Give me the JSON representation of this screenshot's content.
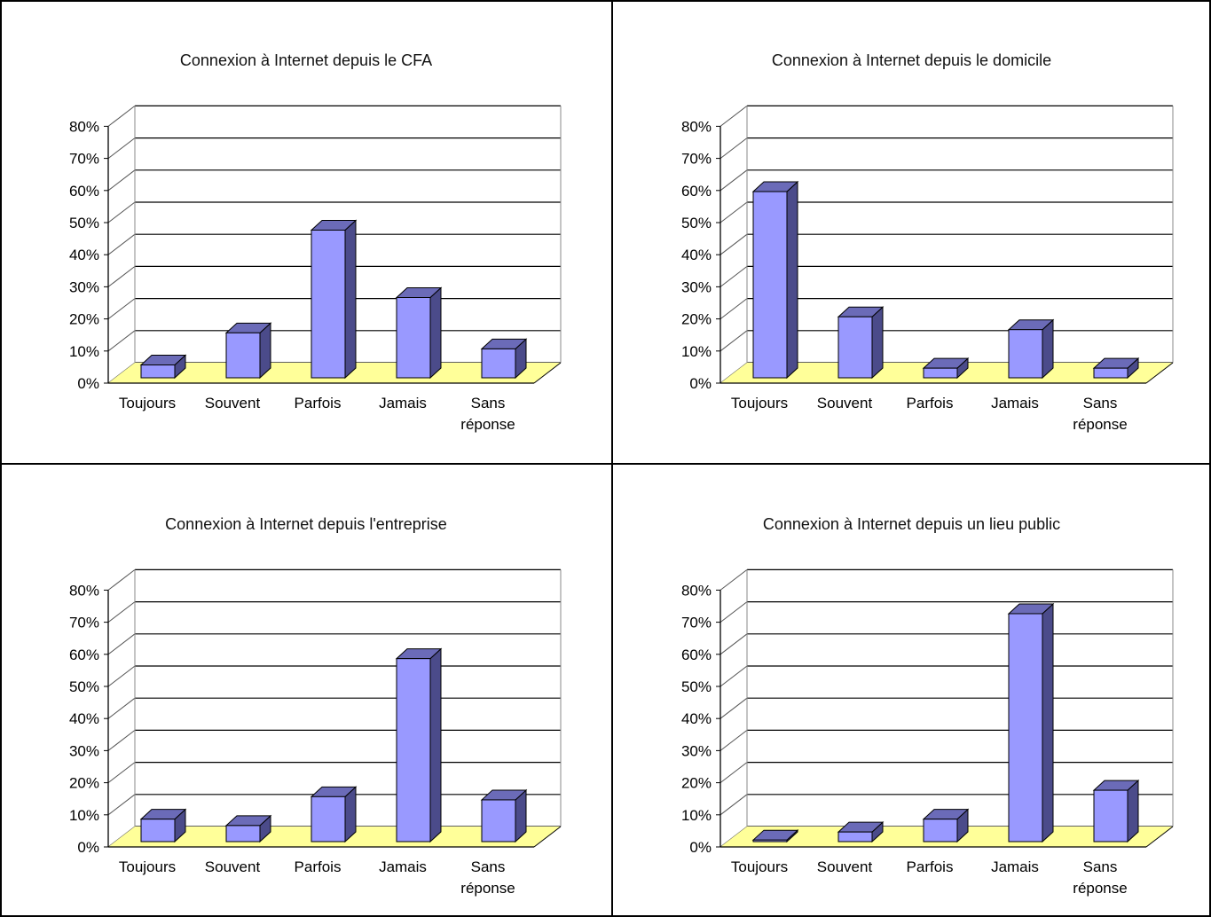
{
  "chart_data": [
    {
      "type": "bar",
      "title": "Connexion à Internet depuis le CFA",
      "categories": [
        "Toujours",
        "Souvent",
        "Parfois",
        "Jamais",
        "Sans réponse"
      ],
      "values": [
        4,
        14,
        46,
        25,
        9
      ],
      "yticks": [
        "0%",
        "10%",
        "20%",
        "30%",
        "40%",
        "50%",
        "60%",
        "70%",
        "80%"
      ],
      "ylim": [
        0,
        80
      ],
      "grid": true
    },
    {
      "type": "bar",
      "title": "Connexion à Internet depuis le domicile",
      "categories": [
        "Toujours",
        "Souvent",
        "Parfois",
        "Jamais",
        "Sans réponse"
      ],
      "values": [
        58,
        19,
        3,
        15,
        3
      ],
      "yticks": [
        "0%",
        "10%",
        "20%",
        "30%",
        "40%",
        "50%",
        "60%",
        "70%",
        "80%"
      ],
      "ylim": [
        0,
        80
      ],
      "grid": true
    },
    {
      "type": "bar",
      "title": "Connexion à Internet depuis l'entreprise",
      "categories": [
        "Toujours",
        "Souvent",
        "Parfois",
        "Jamais",
        "Sans réponse"
      ],
      "values": [
        7,
        5,
        14,
        57,
        13
      ],
      "yticks": [
        "0%",
        "10%",
        "20%",
        "30%",
        "40%",
        "50%",
        "60%",
        "70%",
        "80%"
      ],
      "ylim": [
        0,
        80
      ],
      "grid": true
    },
    {
      "type": "bar",
      "title": "Connexion à Internet depuis un lieu public",
      "categories": [
        "Toujours",
        "Souvent",
        "Parfois",
        "Jamais",
        "Sans réponse"
      ],
      "values": [
        0.5,
        3,
        7,
        71,
        16
      ],
      "yticks": [
        "0%",
        "10%",
        "20%",
        "30%",
        "40%",
        "50%",
        "60%",
        "70%",
        "80%"
      ],
      "ylim": [
        0,
        80
      ],
      "grid": true
    }
  ],
  "colors": {
    "bar_front": "#9999FF",
    "bar_side": "#4B4B8A",
    "bar_top": "#6B6BB8",
    "floor": "#FFFF99",
    "gridline": "#000000",
    "border": "#000000"
  }
}
